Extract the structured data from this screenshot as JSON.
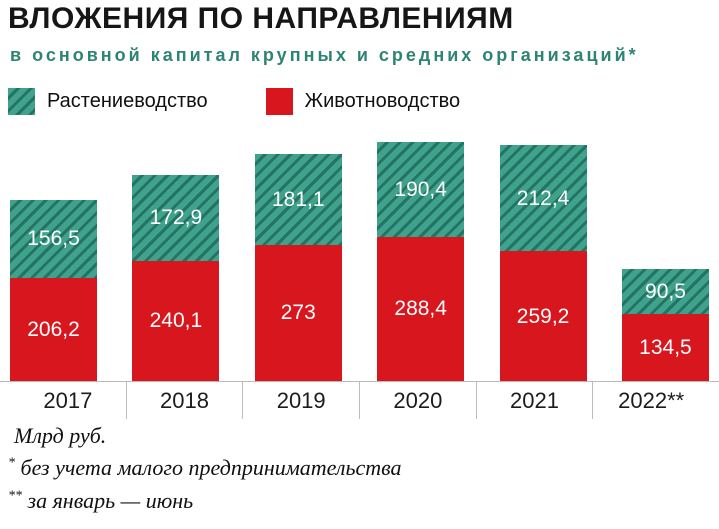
{
  "title": "ВЛОЖЕНИЯ ПО НАПРАВЛЕНИЯМ",
  "subtitle": "в основной капитал крупных и средних организаций*",
  "legend": {
    "items": [
      {
        "label": "Растениеводство",
        "color": "#3fa28d",
        "hatched": true
      },
      {
        "label": "Животноводство",
        "color": "#d7161e",
        "hatched": false
      }
    ]
  },
  "footer": {
    "units": "Млрд руб.",
    "notes": [
      {
        "marker": "*",
        "text": " без учета малого предпринимательства"
      },
      {
        "marker": "**",
        "text": " за январь — июнь"
      }
    ]
  },
  "chart_data": {
    "type": "bar",
    "stacked": true,
    "title": "ВЛОЖЕНИЯ ПО НАПРАВЛЕНИЯМ в основной капитал крупных и средних организаций",
    "categories": [
      "2017",
      "2018",
      "2019",
      "2020",
      "2021",
      "2022**"
    ],
    "series": [
      {
        "name": "Животноводство",
        "color": "#d7161e",
        "hatched": false,
        "values": [
          206.2,
          240.1,
          273,
          288.4,
          259.2,
          134.5
        ],
        "value_labels": [
          "206,2",
          "240,1",
          "273",
          "288,4",
          "259,2",
          "134,5"
        ]
      },
      {
        "name": "Растениеводство",
        "color": "#3fa28d",
        "hatched": true,
        "values": [
          156.5,
          172.9,
          181.1,
          190.4,
          212.4,
          90.5
        ],
        "value_labels": [
          "156,5",
          "172,9",
          "181,1",
          "190,4",
          "212,4",
          "90,5"
        ]
      }
    ],
    "totals": [
      362.7,
      413.0,
      454.1,
      478.8,
      471.6,
      225.0
    ],
    "xlabel": "",
    "ylabel": "Млрд руб.",
    "ylim": [
      0,
      500
    ],
    "grid": false,
    "legend_position": "top"
  }
}
